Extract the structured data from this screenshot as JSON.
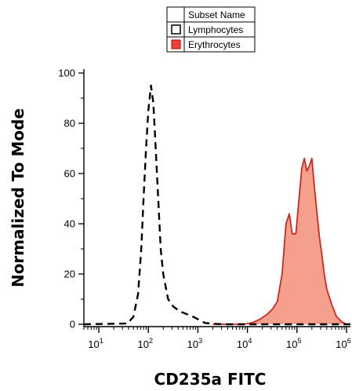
{
  "chart_data": {
    "type": "area",
    "xscale": "log",
    "xlabel": "CD235a FITC",
    "ylabel": "Normalized To Mode",
    "xlim": [
      5,
      1200000
    ],
    "ylim": [
      0,
      100
    ],
    "legend": {
      "header": "Subset Name",
      "placement": "top-center",
      "entries": [
        {
          "name": "Lymphocytes",
          "color": "#ffffff",
          "border": "#000000"
        },
        {
          "name": "Erythrocytes",
          "color": "#e8433d",
          "border": "#b00000"
        }
      ]
    },
    "y_ticks": [
      {
        "value": 0,
        "label": "0"
      },
      {
        "value": 20,
        "label": "20"
      },
      {
        "value": 40,
        "label": "40"
      },
      {
        "value": 60,
        "label": "60"
      },
      {
        "value": 80,
        "label": "80"
      },
      {
        "value": 100,
        "label": "100"
      }
    ],
    "x_ticks": [
      {
        "value": 10,
        "base": "10",
        "exp": "1"
      },
      {
        "value": 100,
        "base": "10",
        "exp": "2"
      },
      {
        "value": 1000,
        "base": "10",
        "exp": "3"
      },
      {
        "value": 10000,
        "base": "10",
        "exp": "4"
      },
      {
        "value": 100000,
        "base": "10",
        "exp": "5"
      },
      {
        "value": 1000000,
        "base": "10",
        "exp": "6"
      }
    ],
    "series": [
      {
        "name": "Lymphocytes",
        "style": "dashed",
        "stroke": "#000000",
        "fill": "none",
        "points": [
          [
            5,
            0
          ],
          [
            38,
            0.3
          ],
          [
            50,
            3
          ],
          [
            62,
            12
          ],
          [
            72,
            30
          ],
          [
            80,
            50
          ],
          [
            90,
            70
          ],
          [
            100,
            85
          ],
          [
            113,
            95
          ],
          [
            126,
            88
          ],
          [
            141,
            70
          ],
          [
            158,
            50
          ],
          [
            178,
            30
          ],
          [
            200,
            20
          ],
          [
            250,
            10
          ],
          [
            320,
            7
          ],
          [
            450,
            5
          ],
          [
            600,
            4
          ],
          [
            800,
            3
          ],
          [
            1000,
            2
          ],
          [
            1400,
            0.5
          ],
          [
            3000,
            0
          ],
          [
            1200000,
            0
          ]
        ]
      },
      {
        "name": "Erythrocytes",
        "style": "solid",
        "stroke": "#cc2a20",
        "fill": "#f4a08c",
        "points": [
          [
            2000,
            0
          ],
          [
            8000,
            0
          ],
          [
            12000,
            0.5
          ],
          [
            18000,
            2
          ],
          [
            25000,
            4
          ],
          [
            32000,
            6
          ],
          [
            40000,
            9
          ],
          [
            50000,
            20
          ],
          [
            60000,
            40
          ],
          [
            70000,
            44
          ],
          [
            80000,
            36
          ],
          [
            95000,
            36
          ],
          [
            110000,
            50
          ],
          [
            125000,
            62
          ],
          [
            141000,
            66
          ],
          [
            158000,
            61
          ],
          [
            178000,
            63
          ],
          [
            200000,
            66
          ],
          [
            224000,
            55
          ],
          [
            251000,
            45
          ],
          [
            282000,
            35
          ],
          [
            316000,
            28
          ],
          [
            355000,
            20
          ],
          [
            400000,
            14
          ],
          [
            500000,
            8
          ],
          [
            630000,
            3
          ],
          [
            800000,
            1
          ],
          [
            1000000,
            0
          ],
          [
            1200000,
            0
          ]
        ]
      }
    ]
  }
}
